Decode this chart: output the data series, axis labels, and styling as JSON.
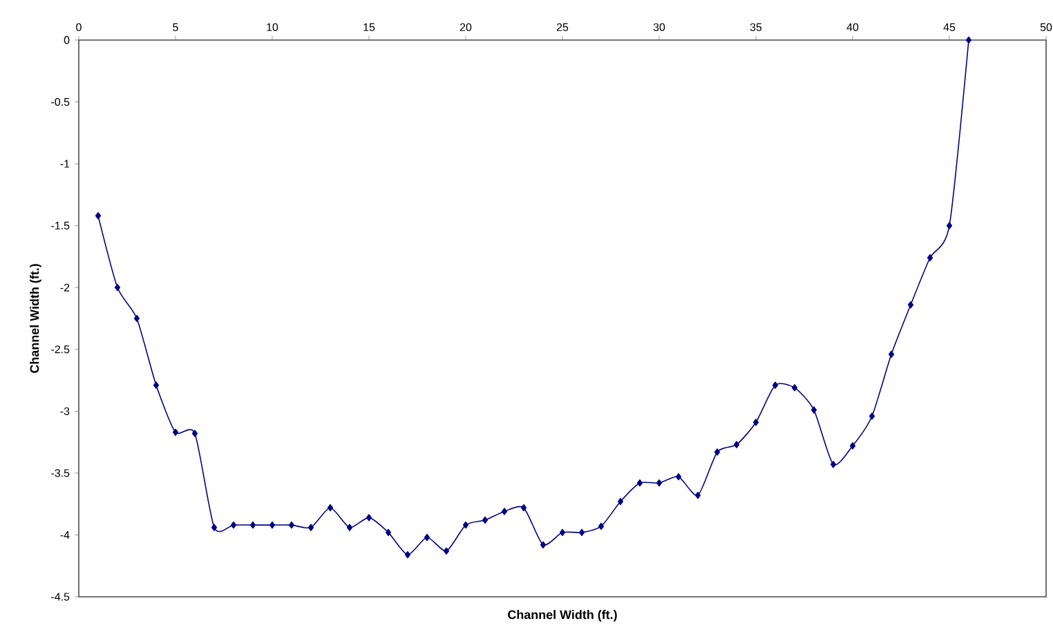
{
  "chart_data": {
    "type": "line",
    "xlabel": "Channel Width (ft.)",
    "ylabel": "Channel Width (ft.)",
    "x": [
      1,
      2,
      3,
      4,
      5,
      6,
      7,
      8,
      9,
      10,
      11,
      12,
      13,
      14,
      15,
      16,
      17,
      18,
      19,
      20,
      21,
      22,
      23,
      24,
      25,
      26,
      27,
      28,
      29,
      30,
      31,
      32,
      33,
      34,
      35,
      36,
      37,
      38,
      39,
      40,
      41,
      42,
      43,
      44,
      45,
      46
    ],
    "series": [
      {
        "color": "#000080",
        "values": [
          -1.42,
          -2.0,
          -2.25,
          -2.79,
          -3.17,
          -3.18,
          -3.94,
          -3.92,
          -3.92,
          -3.92,
          -3.92,
          -3.94,
          -3.78,
          -3.94,
          -3.86,
          -3.98,
          -4.16,
          -4.02,
          -4.13,
          -3.92,
          -3.88,
          -3.81,
          -3.78,
          -4.08,
          -3.98,
          -3.98,
          -3.93,
          -3.73,
          -3.58,
          -3.58,
          -3.53,
          -3.68,
          -3.33,
          -3.27,
          -3.09,
          -2.79,
          -2.81,
          -2.99,
          -3.43,
          -3.28,
          -3.04,
          -2.54,
          -2.14,
          -1.76,
          -1.5,
          0
        ]
      }
    ],
    "xlim": [
      0,
      50
    ],
    "xticks": [
      0,
      5,
      10,
      15,
      20,
      25,
      30,
      35,
      40,
      45,
      50
    ],
    "ylim": [
      -4.5,
      0
    ],
    "yticks": [
      -4.5,
      -4,
      -3.5,
      -3,
      -2.5,
      -2,
      -1.5,
      -1,
      -0.5,
      0
    ],
    "grid": false,
    "marker": "diamond",
    "line_style": "solid"
  }
}
